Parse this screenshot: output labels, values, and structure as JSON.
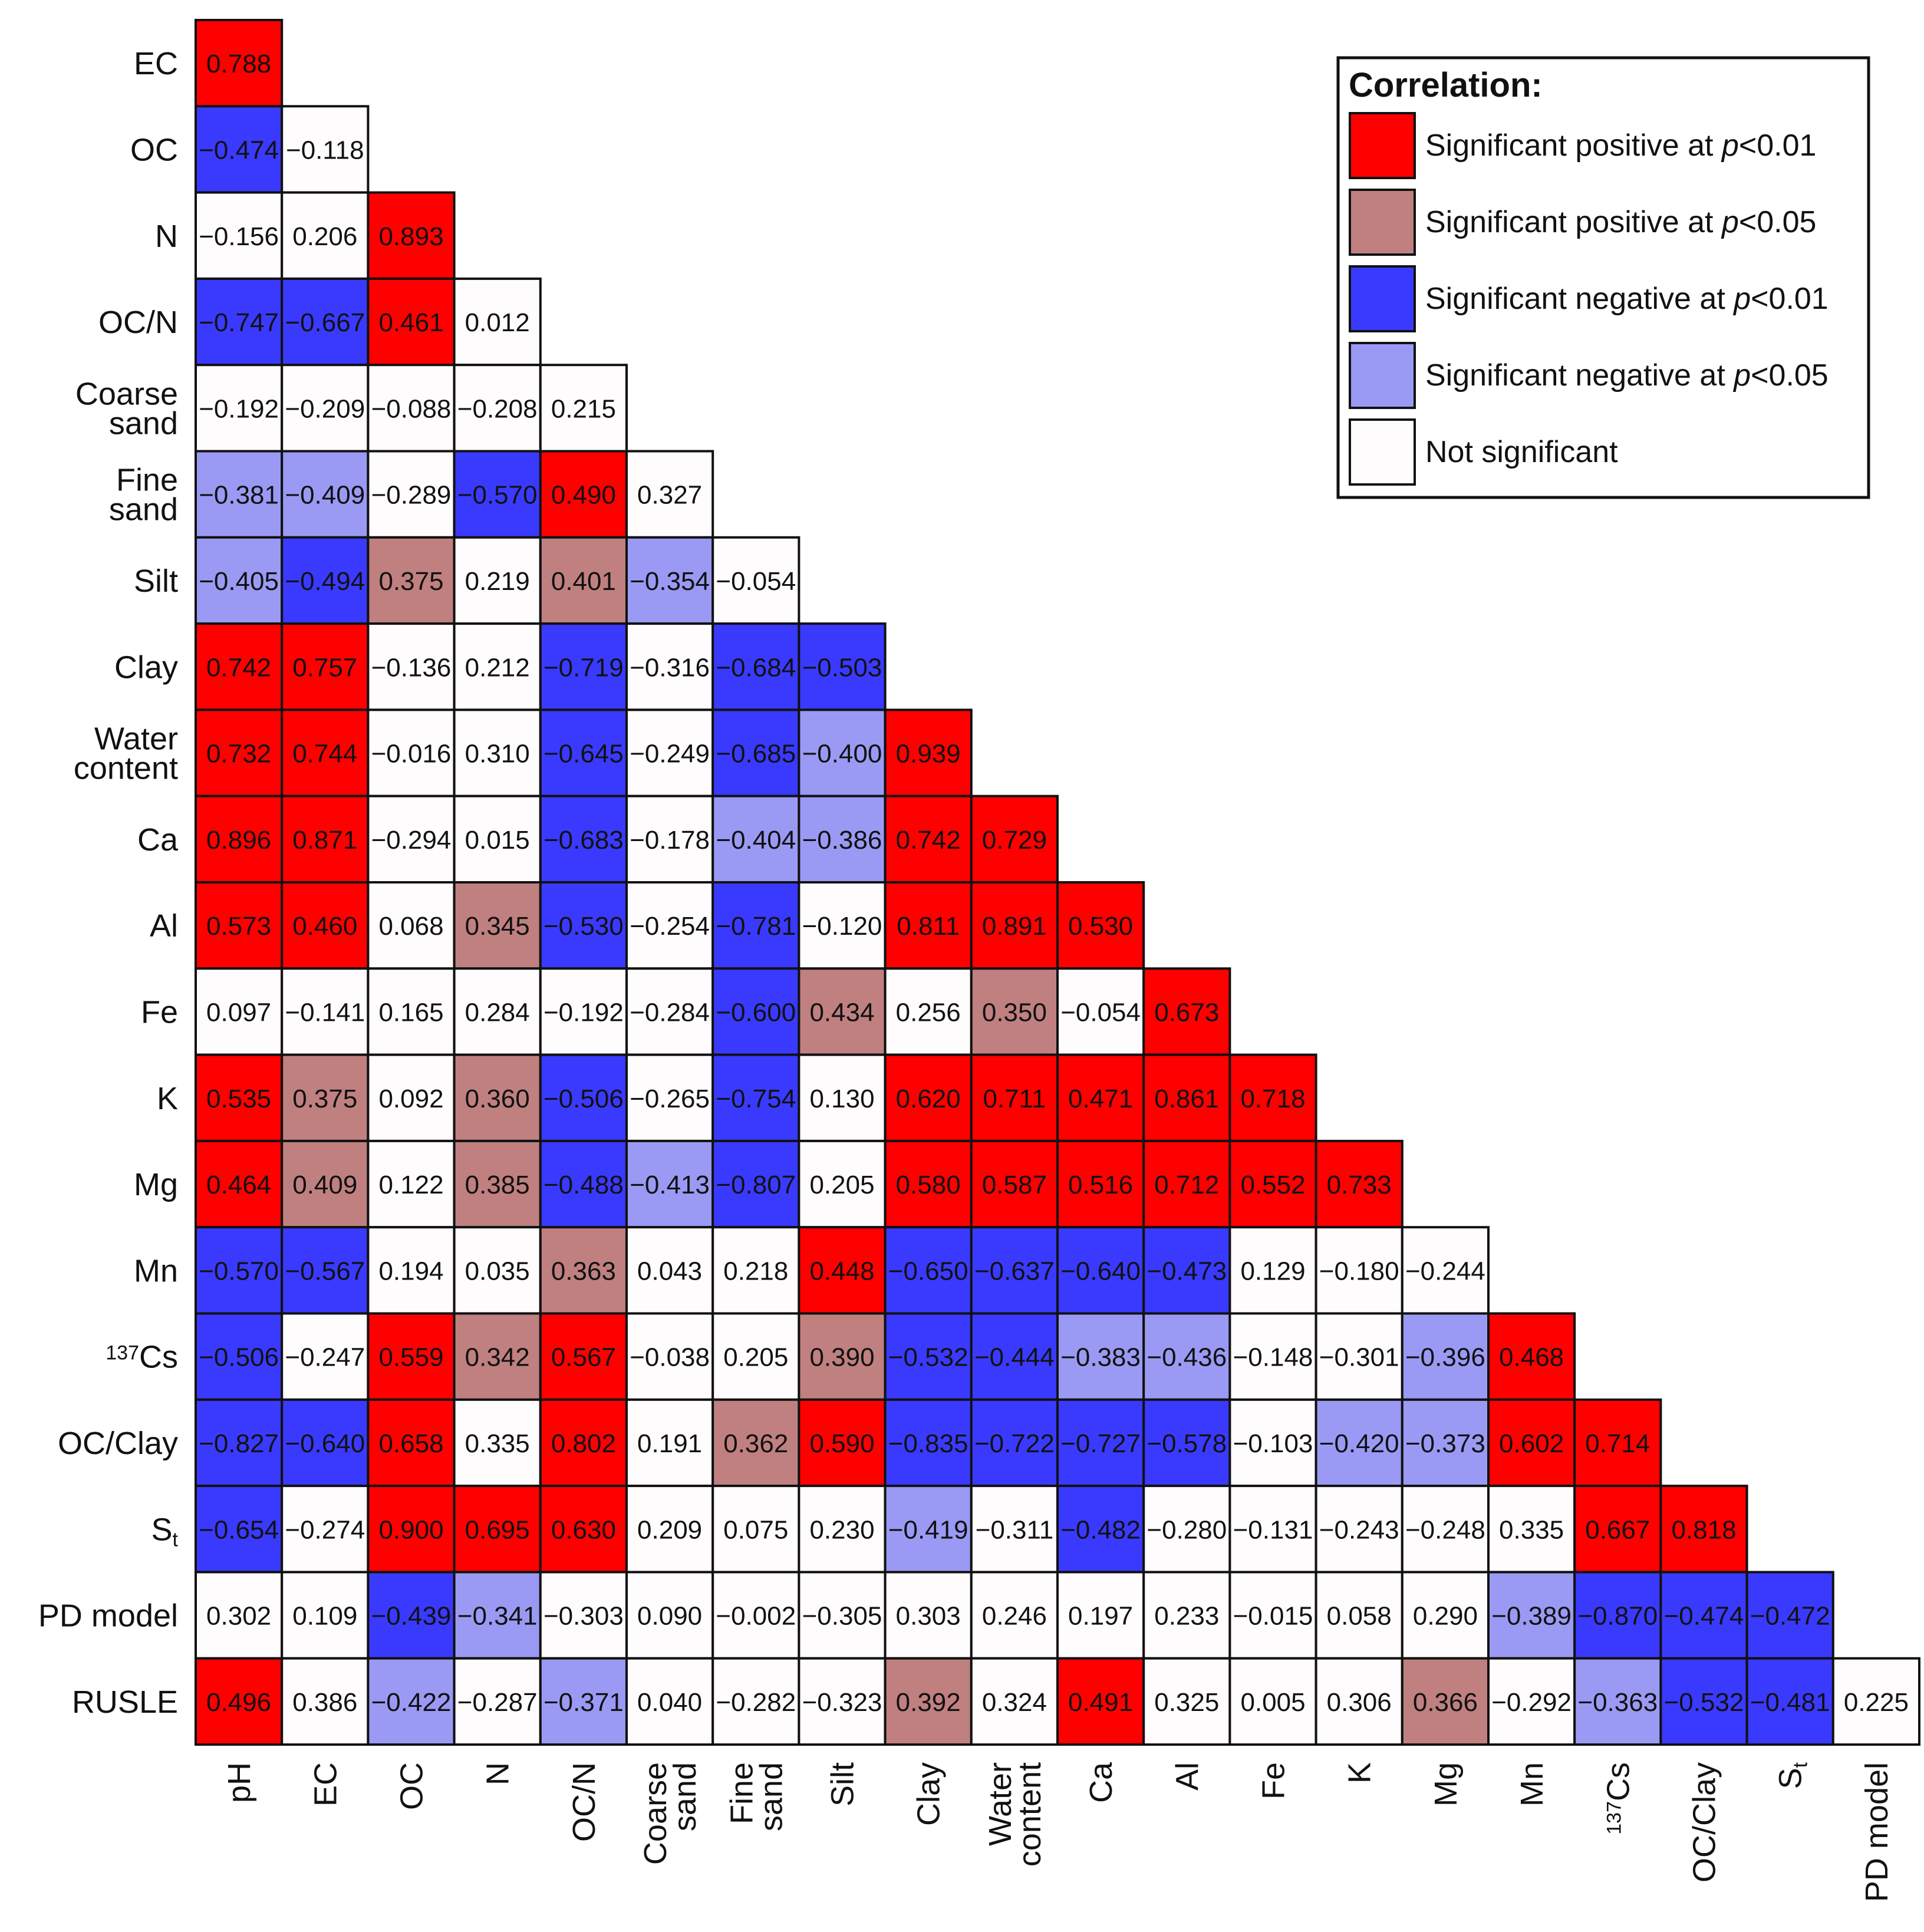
{
  "chart_data": {
    "type": "heatmap",
    "title": "",
    "matrix_shape": "lower-triangular correlation matrix",
    "row_labels": [
      "EC",
      "OC",
      "N",
      "OC/N",
      "Coarse sand",
      "Fine sand",
      "Silt",
      "Clay",
      "Water content",
      "Ca",
      "Al",
      "Fe",
      "K",
      "Mg",
      "Mn",
      "137Cs",
      "OC/Clay",
      "St",
      "PD model",
      "RUSLE"
    ],
    "col_labels": [
      "pH",
      "EC",
      "OC",
      "N",
      "OC/N",
      "Coarse sand",
      "Fine sand",
      "Silt",
      "Clay",
      "Water content",
      "Ca",
      "Al",
      "Fe",
      "K",
      "Mg",
      "Mn",
      "137Cs",
      "OC/Clay",
      "St",
      "PD model"
    ],
    "rows": [
      {
        "values": [
          "0.788"
        ],
        "classes": [
          "p1"
        ]
      },
      {
        "values": [
          "−0.474",
          "−0.118"
        ],
        "classes": [
          "n1",
          "ns"
        ]
      },
      {
        "values": [
          "−0.156",
          "0.206",
          "0.893"
        ],
        "classes": [
          "ns",
          "ns",
          "p1"
        ]
      },
      {
        "values": [
          "−0.747",
          "−0.667",
          "0.461",
          "0.012"
        ],
        "classes": [
          "n1",
          "n1",
          "p1",
          "ns"
        ]
      },
      {
        "values": [
          "−0.192",
          "−0.209",
          "−0.088",
          "−0.208",
          "0.215"
        ],
        "classes": [
          "ns",
          "ns",
          "ns",
          "ns",
          "ns"
        ]
      },
      {
        "values": [
          "−0.381",
          "−0.409",
          "−0.289",
          "−0.570",
          "0.490",
          "0.327"
        ],
        "classes": [
          "n5",
          "n5",
          "ns",
          "n1",
          "p1",
          "ns"
        ]
      },
      {
        "values": [
          "−0.405",
          "−0.494",
          "0.375",
          "0.219",
          "0.401",
          "−0.354",
          "−0.054"
        ],
        "classes": [
          "n5",
          "n1",
          "p5",
          "ns",
          "p5",
          "n5",
          "ns"
        ]
      },
      {
        "values": [
          "0.742",
          "0.757",
          "−0.136",
          "0.212",
          "−0.719",
          "−0.316",
          "−0.684",
          "−0.503"
        ],
        "classes": [
          "p1",
          "p1",
          "ns",
          "ns",
          "n1",
          "ns",
          "n1",
          "n1"
        ]
      },
      {
        "values": [
          "0.732",
          "0.744",
          "−0.016",
          "0.310",
          "−0.645",
          "−0.249",
          "−0.685",
          "−0.400",
          "0.939"
        ],
        "classes": [
          "p1",
          "p1",
          "ns",
          "ns",
          "n1",
          "ns",
          "n1",
          "n5",
          "p1"
        ]
      },
      {
        "values": [
          "0.896",
          "0.871",
          "−0.294",
          "0.015",
          "−0.683",
          "−0.178",
          "−0.404",
          "−0.386",
          "0.742",
          "0.729"
        ],
        "classes": [
          "p1",
          "p1",
          "ns",
          "ns",
          "n1",
          "ns",
          "n5",
          "n5",
          "p1",
          "p1"
        ]
      },
      {
        "values": [
          "0.573",
          "0.460",
          "0.068",
          "0.345",
          "−0.530",
          "−0.254",
          "−0.781",
          "−0.120",
          "0.811",
          "0.891",
          "0.530"
        ],
        "classes": [
          "p1",
          "p1",
          "ns",
          "p5",
          "n1",
          "ns",
          "n1",
          "ns",
          "p1",
          "p1",
          "p1"
        ]
      },
      {
        "values": [
          "0.097",
          "−0.141",
          "0.165",
          "0.284",
          "−0.192",
          "−0.284",
          "−0.600",
          "0.434",
          "0.256",
          "0.350",
          "−0.054",
          "0.673"
        ],
        "classes": [
          "ns",
          "ns",
          "ns",
          "ns",
          "ns",
          "ns",
          "n1",
          "p5",
          "ns",
          "p5",
          "ns",
          "p1"
        ]
      },
      {
        "values": [
          "0.535",
          "0.375",
          "0.092",
          "0.360",
          "−0.506",
          "−0.265",
          "−0.754",
          "0.130",
          "0.620",
          "0.711",
          "0.471",
          "0.861",
          "0.718"
        ],
        "classes": [
          "p1",
          "p5",
          "ns",
          "p5",
          "n1",
          "ns",
          "n1",
          "ns",
          "p1",
          "p1",
          "p1",
          "p1",
          "p1"
        ]
      },
      {
        "values": [
          "0.464",
          "0.409",
          "0.122",
          "0.385",
          "−0.488",
          "−0.413",
          "−0.807",
          "0.205",
          "0.580",
          "0.587",
          "0.516",
          "0.712",
          "0.552",
          "0.733"
        ],
        "classes": [
          "p1",
          "p5",
          "ns",
          "p5",
          "n1",
          "n5",
          "n1",
          "ns",
          "p1",
          "p1",
          "p1",
          "p1",
          "p1",
          "p1"
        ]
      },
      {
        "values": [
          "−0.570",
          "−0.567",
          "0.194",
          "0.035",
          "0.363",
          "0.043",
          "0.218",
          "0.448",
          "−0.650",
          "−0.637",
          "−0.640",
          "−0.473",
          "0.129",
          "−0.180",
          "−0.244"
        ],
        "classes": [
          "n1",
          "n1",
          "ns",
          "ns",
          "p5",
          "ns",
          "ns",
          "p1",
          "n1",
          "n1",
          "n1",
          "n1",
          "ns",
          "ns",
          "ns"
        ]
      },
      {
        "values": [
          "−0.506",
          "−0.247",
          "0.559",
          "0.342",
          "0.567",
          "−0.038",
          "0.205",
          "0.390",
          "−0.532",
          "−0.444",
          "−0.383",
          "−0.436",
          "−0.148",
          "−0.301",
          "−0.396",
          "0.468"
        ],
        "classes": [
          "n1",
          "ns",
          "p1",
          "p5",
          "p1",
          "ns",
          "ns",
          "p5",
          "n1",
          "n1",
          "n5",
          "n5",
          "ns",
          "ns",
          "n5",
          "p1"
        ]
      },
      {
        "values": [
          "−0.827",
          "−0.640",
          "0.658",
          "0.335",
          "0.802",
          "0.191",
          "0.362",
          "0.590",
          "−0.835",
          "−0.722",
          "−0.727",
          "−0.578",
          "−0.103",
          "−0.420",
          "−0.373",
          "0.602",
          "0.714"
        ],
        "classes": [
          "n1",
          "n1",
          "p1",
          "ns",
          "p1",
          "ns",
          "p5",
          "p1",
          "n1",
          "n1",
          "n1",
          "n1",
          "ns",
          "n5",
          "n5",
          "p1",
          "p1"
        ]
      },
      {
        "values": [
          "−0.654",
          "−0.274",
          "0.900",
          "0.695",
          "0.630",
          "0.209",
          "0.075",
          "0.230",
          "−0.419",
          "−0.311",
          "−0.482",
          "−0.280",
          "−0.131",
          "−0.243",
          "−0.248",
          "0.335",
          "0.667",
          "0.818"
        ],
        "classes": [
          "n1",
          "ns",
          "p1",
          "p1",
          "p1",
          "ns",
          "ns",
          "ns",
          "n5",
          "ns",
          "n1",
          "ns",
          "ns",
          "ns",
          "ns",
          "ns",
          "p1",
          "p1"
        ]
      },
      {
        "values": [
          "0.302",
          "0.109",
          "−0.439",
          "−0.341",
          "−0.303",
          "0.090",
          "−0.002",
          "−0.305",
          "0.303",
          "0.246",
          "0.197",
          "0.233",
          "−0.015",
          "0.058",
          "0.290",
          "−0.389",
          "−0.870",
          "−0.474",
          "−0.472"
        ],
        "classes": [
          "ns",
          "ns",
          "n1",
          "n5",
          "ns",
          "ns",
          "ns",
          "ns",
          "ns",
          "ns",
          "ns",
          "ns",
          "ns",
          "ns",
          "ns",
          "n5",
          "n1",
          "n1",
          "n1"
        ]
      },
      {
        "values": [
          "0.496",
          "0.386",
          "−0.422",
          "−0.287",
          "−0.371",
          "0.040",
          "−0.282",
          "−0.323",
          "0.392",
          "0.324",
          "0.491",
          "0.325",
          "0.005",
          "0.306",
          "0.366",
          "−0.292",
          "−0.363",
          "−0.532",
          "−0.481",
          "0.225"
        ],
        "classes": [
          "p1",
          "ns",
          "n5",
          "ns",
          "n5",
          "ns",
          "ns",
          "ns",
          "p5",
          "ns",
          "p1",
          "ns",
          "ns",
          "ns",
          "p5",
          "ns",
          "n5",
          "n1",
          "n1",
          "ns"
        ]
      }
    ],
    "legend": {
      "title": "Correlation:",
      "position": "top-right",
      "entries": [
        {
          "key": "p1",
          "prefix": "Significant positive at ",
          "italic": "p",
          "suffix": "<0.01"
        },
        {
          "key": "p5",
          "prefix": "Significant positive at ",
          "italic": "p",
          "suffix": "<0.05"
        },
        {
          "key": "n1",
          "prefix": "Significant negative at ",
          "italic": "p",
          "suffix": "<0.01"
        },
        {
          "key": "n5",
          "prefix": "Significant negative at ",
          "italic": "p",
          "suffix": "<0.05"
        },
        {
          "key": "ns",
          "prefix": "Not significant",
          "italic": "",
          "suffix": ""
        }
      ]
    },
    "colors": {
      "p1": "#ff0000",
      "p5": "#c08080",
      "n1": "#3a3aff",
      "n5": "#9a9af5",
      "ns": "#fffcfd"
    }
  }
}
